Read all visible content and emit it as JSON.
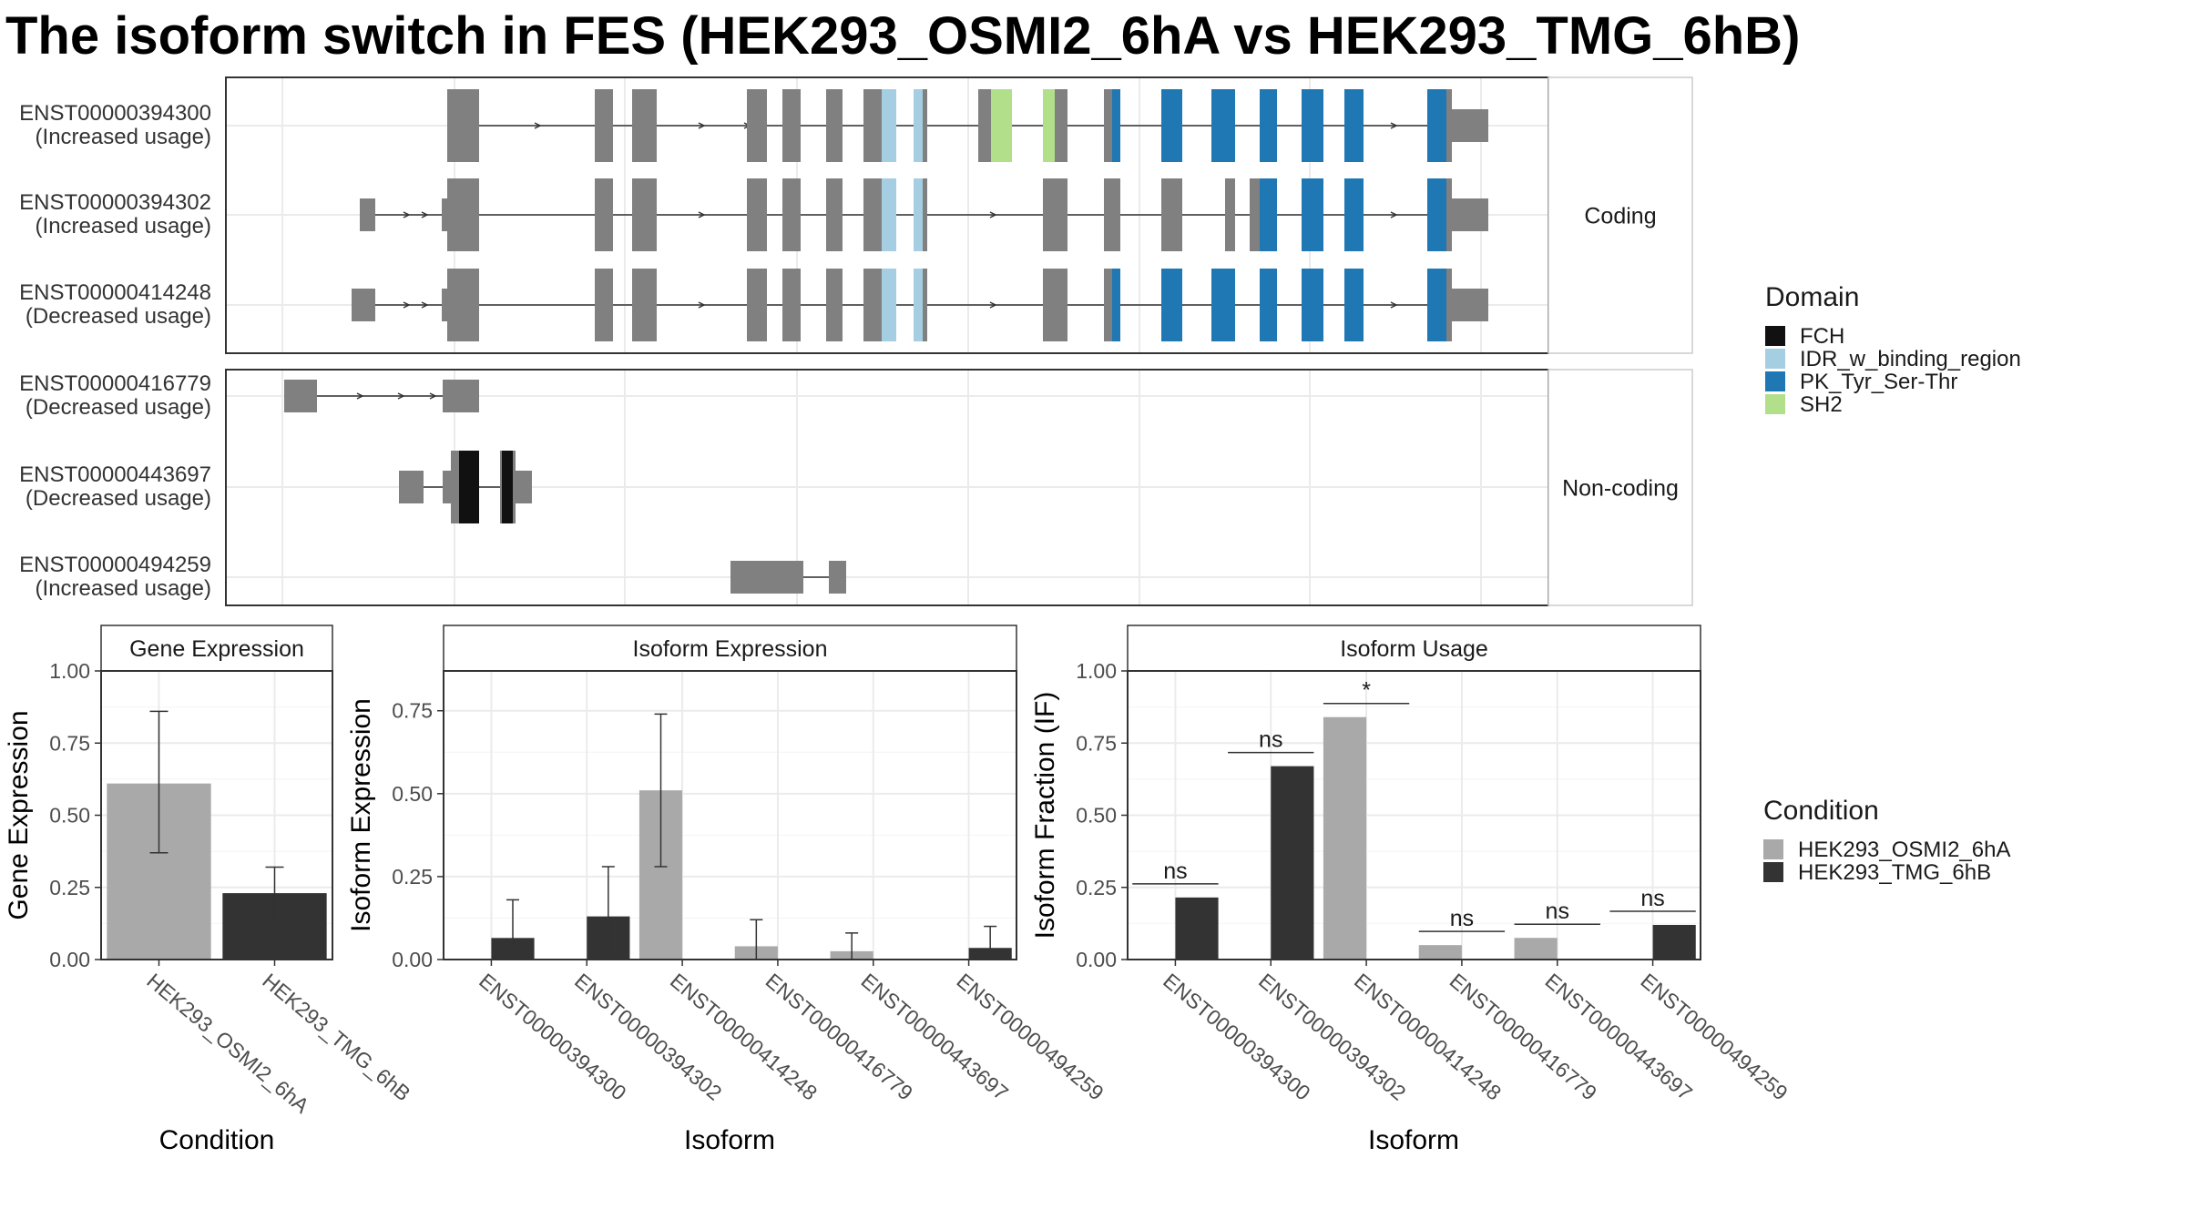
{
  "title": "The isoform switch in FES (HEK293_OSMI2_6hA vs HEK293_TMG_6hB)",
  "structure": {
    "facets": [
      "Coding",
      "Non-coding"
    ],
    "isoforms": [
      {
        "id": "ENST00000394300",
        "usage": "(Increased usage)",
        "facet": "Coding"
      },
      {
        "id": "ENST00000394302",
        "usage": "(Increased usage)",
        "facet": "Coding"
      },
      {
        "id": "ENST00000414248",
        "usage": "(Decreased usage)",
        "facet": "Coding"
      },
      {
        "id": "ENST00000416779",
        "usage": "(Decreased usage)",
        "facet": "Non-coding"
      },
      {
        "id": "ENST00000443697",
        "usage": "(Decreased usage)",
        "facet": "Non-coding"
      },
      {
        "id": "ENST00000494259",
        "usage": "(Increased usage)",
        "facet": "Non-coding"
      }
    ]
  },
  "legend_domain": {
    "title": "Domain",
    "items": [
      {
        "label": "FCH",
        "color": "#111111"
      },
      {
        "label": "IDR_w_binding_region",
        "color": "#a6cee3"
      },
      {
        "label": "PK_Tyr_Ser-Thr",
        "color": "#1f78b4"
      },
      {
        "label": "SH2",
        "color": "#b2df8a"
      }
    ]
  },
  "legend_condition": {
    "title": "Condition",
    "items": [
      {
        "label": "HEK293_OSMI2_6hA",
        "color": "#a9a9a9"
      },
      {
        "label": "HEK293_TMG_6hB",
        "color": "#333333"
      }
    ]
  },
  "chart_data": [
    {
      "type": "bar",
      "title": "Gene Expression",
      "xlabel": "Condition",
      "ylabel": "Gene Expression",
      "categories": [
        "HEK293_OSMI2_6hA",
        "HEK293_TMG_6hB"
      ],
      "values": [
        0.61,
        0.23
      ],
      "errors": [
        [
          0.37,
          0.86
        ],
        [
          0.13,
          0.32
        ]
      ],
      "colors": [
        "#a9a9a9",
        "#333333"
      ],
      "ylim": [
        0,
        1.0
      ],
      "yticks": [
        "0.00",
        "0.25",
        "0.50",
        "0.75",
        "1.00"
      ],
      "ytick_values": [
        0,
        0.25,
        0.5,
        0.75,
        1.0
      ],
      "grid": true
    },
    {
      "type": "bar",
      "title": "Isoform Expression",
      "xlabel": "Isoform",
      "ylabel": "Isoform Expression",
      "categories": [
        "ENST00000394300",
        "ENST00000394302",
        "ENST00000414248",
        "ENST00000416779",
        "ENST00000443697",
        "ENST00000494259"
      ],
      "series": [
        {
          "name": "HEK293_OSMI2_6hA",
          "values": [
            0.0,
            0.0,
            0.51,
            0.04,
            0.025,
            0.0
          ],
          "errors": [
            [
              0,
              0
            ],
            [
              0,
              0
            ],
            [
              0.28,
              0.74
            ],
            [
              0,
              0.12
            ],
            [
              0,
              0.08
            ],
            [
              0,
              0
            ]
          ]
        },
        {
          "name": "HEK293_TMG_6hB",
          "values": [
            0.065,
            0.13,
            0.0,
            0.0,
            0.0,
            0.035
          ],
          "errors": [
            [
              0,
              0.18
            ],
            [
              0,
              0.28
            ],
            [
              0,
              0
            ],
            [
              0,
              0
            ],
            [
              0,
              0
            ],
            [
              0,
              0.1
            ]
          ]
        }
      ],
      "ylim": [
        0,
        0.87
      ],
      "yticks": [
        "0.00",
        "0.25",
        "0.50",
        "0.75"
      ],
      "ytick_values": [
        0,
        0.25,
        0.5,
        0.75
      ],
      "grid": true
    },
    {
      "type": "bar",
      "title": "Isoform Usage",
      "xlabel": "Isoform",
      "ylabel": "Isoform Fraction (IF)",
      "categories": [
        "ENST00000394300",
        "ENST00000394302",
        "ENST00000414248",
        "ENST00000416779",
        "ENST00000443697",
        "ENST00000494259"
      ],
      "series": [
        {
          "name": "HEK293_OSMI2_6hA",
          "values": [
            0.0,
            0.0,
            0.84,
            0.05,
            0.075,
            0.0
          ]
        },
        {
          "name": "HEK293_TMG_6hB",
          "values": [
            0.215,
            0.67,
            0.0,
            0.0,
            0.0,
            0.12
          ]
        }
      ],
      "significance": [
        "ns",
        "ns",
        "*",
        "ns",
        "ns",
        "ns"
      ],
      "ylim": [
        0,
        1.0
      ],
      "yticks": [
        "0.00",
        "0.25",
        "0.50",
        "0.75",
        "1.00"
      ],
      "ytick_values": [
        0,
        0.25,
        0.5,
        0.75,
        1.0
      ],
      "grid": true
    }
  ]
}
